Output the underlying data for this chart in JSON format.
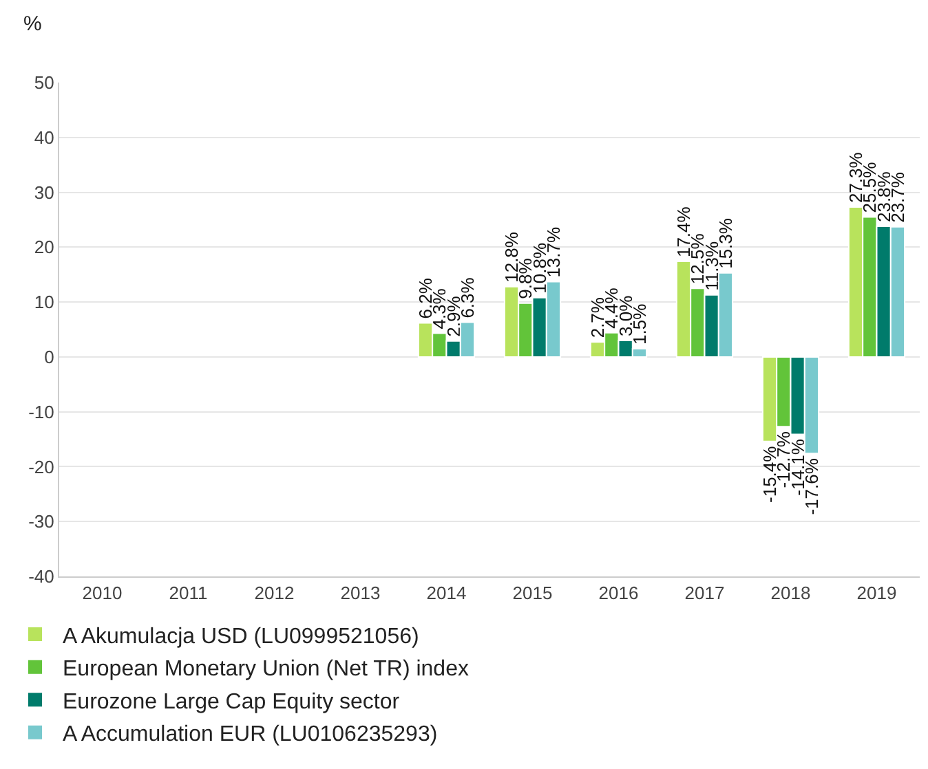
{
  "chart_data": {
    "type": "bar",
    "ylabel": "%",
    "categories": [
      "2010",
      "2011",
      "2012",
      "2013",
      "2014",
      "2015",
      "2016",
      "2017",
      "2018",
      "2019"
    ],
    "series": [
      {
        "name": "A Akumulacja USD (LU0999521056)",
        "color": "#b8e35c",
        "values": [
          null,
          null,
          null,
          null,
          6.2,
          12.8,
          2.7,
          17.4,
          -15.4,
          27.3
        ],
        "value_labels": [
          null,
          null,
          null,
          null,
          "6.2%",
          "12.8%",
          "2.7%",
          "17.4%",
          "-15.4%",
          "27.3%"
        ]
      },
      {
        "name": "European Monetary Union (Net TR) index",
        "color": "#62c43a",
        "values": [
          null,
          null,
          null,
          null,
          4.3,
          9.8,
          4.4,
          12.5,
          -12.7,
          25.5
        ],
        "value_labels": [
          null,
          null,
          null,
          null,
          "4.3%",
          "9.8%",
          "4.4%",
          "12.5%",
          "-12.7%",
          "25.5%"
        ]
      },
      {
        "name": "Eurozone Large Cap Equity sector",
        "color": "#007b6b",
        "values": [
          null,
          null,
          null,
          null,
          2.9,
          10.8,
          3.0,
          11.3,
          -14.1,
          23.8
        ],
        "value_labels": [
          null,
          null,
          null,
          null,
          "2.9%",
          "10.8%",
          "3.0%",
          "11.3%",
          "-14.1%",
          "23.8%"
        ]
      },
      {
        "name": "A Accumulation EUR (LU0106235293)",
        "color": "#78c9cd",
        "values": [
          null,
          null,
          null,
          null,
          6.3,
          13.7,
          1.5,
          15.3,
          -17.6,
          23.7
        ],
        "value_labels": [
          null,
          null,
          null,
          null,
          "6.3%",
          "13.7%",
          "1.5%",
          "15.3%",
          "-17.6%",
          "23.7%"
        ]
      }
    ],
    "ylim": [
      -40,
      50
    ],
    "yticks": [
      -40,
      -30,
      -20,
      -10,
      0,
      10,
      20,
      30,
      40,
      50
    ],
    "grid": "y",
    "legend": "bottom"
  }
}
